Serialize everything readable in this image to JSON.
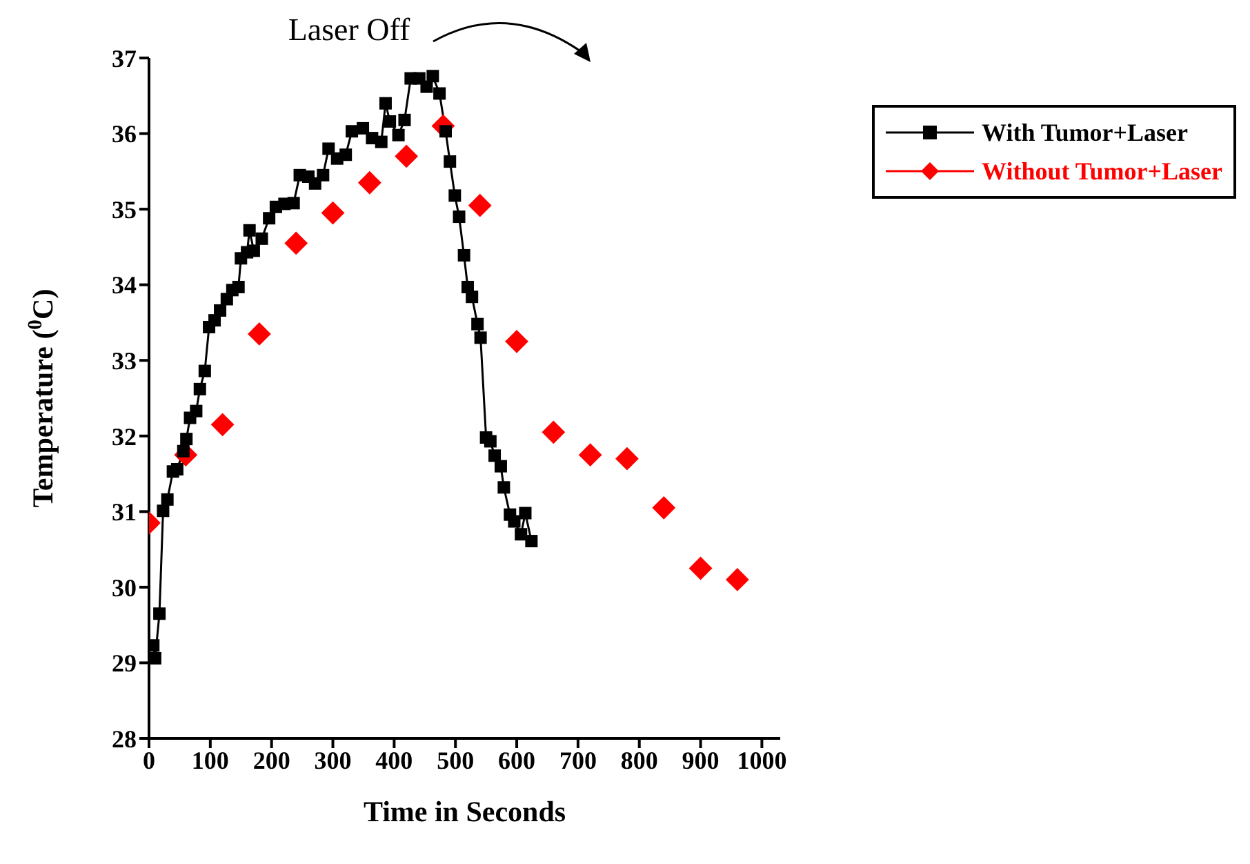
{
  "chart_data": {
    "type": "line",
    "xlabel": "Time in Seconds",
    "ylabel": "Temperature ($^{0}$C)",
    "xlim": [
      0,
      1030
    ],
    "xticks": [
      0,
      100,
      200,
      300,
      400,
      500,
      600,
      700,
      800,
      900,
      1000
    ],
    "ylim": [
      28,
      37
    ],
    "yticks": [
      28,
      29,
      30,
      31,
      32,
      33,
      34,
      35,
      36,
      37
    ],
    "grid": false,
    "legend": "top right",
    "annotations": [
      "Laser Off"
    ],
    "series": [
      {
        "name": "With Tumor+Laser",
        "color": "#000000",
        "marker": "square",
        "x": [
          7,
          10,
          17,
          23,
          30,
          39,
          46,
          56,
          61,
          67,
          77,
          83,
          91,
          98,
          107,
          116,
          127,
          136,
          146,
          150,
          160,
          164,
          171,
          184,
          196,
          207,
          221,
          236,
          246,
          260,
          271,
          284,
          293,
          307,
          321,
          331,
          349,
          364,
          379,
          386,
          393,
          407,
          417,
          427,
          441,
          453,
          463,
          474,
          484,
          491,
          499,
          506,
          514,
          520,
          527,
          536,
          541,
          550,
          557,
          564,
          574,
          579,
          589,
          596,
          607,
          614,
          624
        ],
        "values": [
          29.23,
          29.06,
          29.65,
          31.01,
          31.16,
          31.53,
          31.56,
          31.8,
          31.96,
          32.24,
          32.33,
          32.62,
          32.86,
          33.44,
          33.53,
          33.66,
          33.81,
          33.93,
          33.97,
          34.35,
          34.43,
          34.72,
          34.45,
          34.61,
          34.88,
          35.03,
          35.07,
          35.08,
          35.45,
          35.43,
          35.34,
          35.45,
          35.8,
          35.67,
          35.72,
          36.03,
          36.07,
          35.94,
          35.89,
          36.4,
          36.16,
          35.98,
          36.18,
          36.73,
          36.73,
          36.62,
          36.76,
          36.53,
          36.03,
          35.63,
          35.18,
          34.9,
          34.39,
          33.97,
          33.84,
          33.48,
          33.3,
          31.98,
          31.93,
          31.74,
          31.6,
          31.32,
          30.96,
          30.87,
          30.7,
          30.98,
          30.61
        ]
      },
      {
        "name": "Without Tumor+Laser",
        "color": "#ff0000",
        "type": "scatter",
        "marker": "diamond",
        "x": [
          0,
          60,
          120,
          180,
          240,
          300,
          360,
          420,
          480,
          540,
          600,
          660,
          720,
          780,
          840,
          900,
          960
        ],
        "values": [
          30.85,
          31.75,
          32.15,
          33.35,
          34.55,
          34.95,
          35.35,
          35.7,
          36.1,
          35.05,
          33.25,
          32.05,
          31.75,
          31.7,
          31.05,
          30.25,
          30.1
        ]
      }
    ]
  }
}
